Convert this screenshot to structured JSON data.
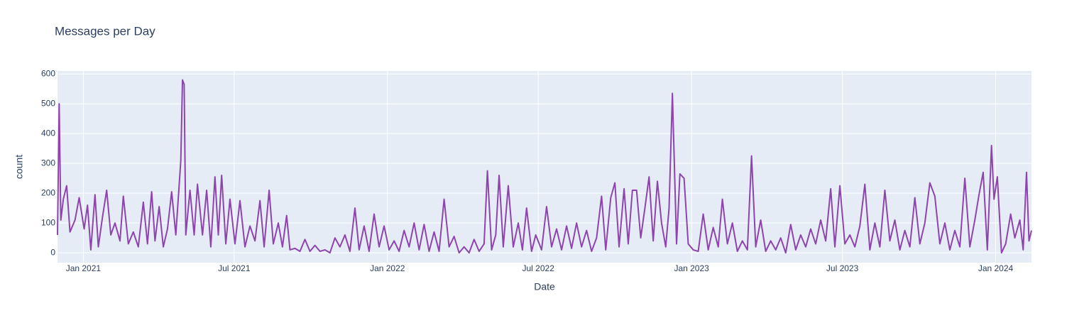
{
  "chart_data": {
    "type": "line",
    "title": "Messages per Day",
    "xlabel": "Date",
    "ylabel": "count",
    "xlim": [
      "2020-12-01",
      "2024-02-13"
    ],
    "ylim": [
      -33,
      610
    ],
    "xticks": [
      {
        "value": "2021-01-01",
        "label": "Jan 2021"
      },
      {
        "value": "2021-07-01",
        "label": "Jul 2021"
      },
      {
        "value": "2022-01-01",
        "label": "Jan 2022"
      },
      {
        "value": "2022-07-01",
        "label": "Jul 2022"
      },
      {
        "value": "2023-01-01",
        "label": "Jan 2023"
      },
      {
        "value": "2023-07-01",
        "label": "Jul 2023"
      },
      {
        "value": "2024-01-01",
        "label": "Jan 2024"
      }
    ],
    "yticks": [
      0,
      100,
      200,
      300,
      400,
      500,
      600
    ],
    "grid": true,
    "series": [
      {
        "name": "count",
        "color": "#8e44ad",
        "x": [
          "2020-12-01",
          "2020-12-03",
          "2020-12-05",
          "2020-12-08",
          "2020-12-12",
          "2020-12-16",
          "2020-12-22",
          "2020-12-27",
          "2021-01-02",
          "2021-01-06",
          "2021-01-10",
          "2021-01-15",
          "2021-01-19",
          "2021-01-24",
          "2021-01-29",
          "2021-02-03",
          "2021-02-08",
          "2021-02-14",
          "2021-02-18",
          "2021-02-24",
          "2021-03-02",
          "2021-03-08",
          "2021-03-14",
          "2021-03-19",
          "2021-03-24",
          "2021-03-28",
          "2021-04-02",
          "2021-04-07",
          "2021-04-12",
          "2021-04-17",
          "2021-04-22",
          "2021-04-28",
          "2021-04-30",
          "2021-05-02",
          "2021-05-04",
          "2021-05-09",
          "2021-05-14",
          "2021-05-18",
          "2021-05-24",
          "2021-05-29",
          "2021-06-03",
          "2021-06-08",
          "2021-06-12",
          "2021-06-16",
          "2021-06-21",
          "2021-06-26",
          "2021-07-02",
          "2021-07-08",
          "2021-07-14",
          "2021-07-20",
          "2021-07-26",
          "2021-08-01",
          "2021-08-06",
          "2021-08-12",
          "2021-08-17",
          "2021-08-23",
          "2021-08-28",
          "2021-09-02",
          "2021-09-06",
          "2021-09-12",
          "2021-09-18",
          "2021-09-24",
          "2021-09-30",
          "2021-10-06",
          "2021-10-12",
          "2021-10-18",
          "2021-10-24",
          "2021-10-30",
          "2021-11-05",
          "2021-11-11",
          "2021-11-17",
          "2021-11-23",
          "2021-11-28",
          "2021-12-04",
          "2021-12-10",
          "2021-12-16",
          "2021-12-22",
          "2021-12-28",
          "2022-01-03",
          "2022-01-09",
          "2022-01-15",
          "2022-01-21",
          "2022-01-27",
          "2022-02-02",
          "2022-02-08",
          "2022-02-14",
          "2022-02-20",
          "2022-02-26",
          "2022-03-04",
          "2022-03-10",
          "2022-03-16",
          "2022-03-22",
          "2022-03-28",
          "2022-04-03",
          "2022-04-09",
          "2022-04-15",
          "2022-04-21",
          "2022-04-27",
          "2022-05-01",
          "2022-05-06",
          "2022-05-11",
          "2022-05-15",
          "2022-05-20",
          "2022-05-26",
          "2022-06-01",
          "2022-06-07",
          "2022-06-12",
          "2022-06-17",
          "2022-06-23",
          "2022-06-28",
          "2022-07-05",
          "2022-07-11",
          "2022-07-17",
          "2022-07-23",
          "2022-07-29",
          "2022-08-04",
          "2022-08-10",
          "2022-08-16",
          "2022-08-22",
          "2022-08-28",
          "2022-09-03",
          "2022-09-09",
          "2022-09-15",
          "2022-09-20",
          "2022-09-26",
          "2022-10-01",
          "2022-10-06",
          "2022-10-12",
          "2022-10-17",
          "2022-10-22",
          "2022-10-27",
          "2022-11-01",
          "2022-11-06",
          "2022-11-11",
          "2022-11-16",
          "2022-11-21",
          "2022-11-26",
          "2022-12-01",
          "2022-12-05",
          "2022-12-09",
          "2022-12-14",
          "2022-12-18",
          "2022-12-23",
          "2022-12-28",
          "2023-01-03",
          "2023-01-09",
          "2023-01-15",
          "2023-01-21",
          "2023-01-27",
          "2023-02-02",
          "2023-02-07",
          "2023-02-13",
          "2023-02-19",
          "2023-02-25",
          "2023-03-03",
          "2023-03-09",
          "2023-03-14",
          "2023-03-19",
          "2023-03-25",
          "2023-03-31",
          "2023-04-06",
          "2023-04-12",
          "2023-04-18",
          "2023-04-24",
          "2023-04-30",
          "2023-05-06",
          "2023-05-12",
          "2023-05-18",
          "2023-05-24",
          "2023-05-30",
          "2023-06-05",
          "2023-06-11",
          "2023-06-17",
          "2023-06-22",
          "2023-06-28",
          "2023-07-04",
          "2023-07-10",
          "2023-07-16",
          "2023-07-22",
          "2023-07-28",
          "2023-08-03",
          "2023-08-09",
          "2023-08-15",
          "2023-08-21",
          "2023-08-27",
          "2023-09-02",
          "2023-09-08",
          "2023-09-14",
          "2023-09-20",
          "2023-09-26",
          "2023-10-02",
          "2023-10-08",
          "2023-10-14",
          "2023-10-20",
          "2023-10-26",
          "2023-11-01",
          "2023-11-07",
          "2023-11-13",
          "2023-11-19",
          "2023-11-25",
          "2023-12-01",
          "2023-12-07",
          "2023-12-12",
          "2023-12-17",
          "2023-12-22",
          "2023-12-27",
          "2023-12-30",
          "2024-01-03",
          "2024-01-08",
          "2024-01-13",
          "2024-01-19",
          "2024-01-24",
          "2024-01-30",
          "2024-02-03",
          "2024-02-07",
          "2024-02-10",
          "2024-02-13"
        ],
        "values": [
          60,
          500,
          110,
          180,
          225,
          70,
          110,
          185,
          80,
          160,
          10,
          195,
          20,
          120,
          210,
          60,
          100,
          40,
          190,
          30,
          70,
          20,
          170,
          30,
          205,
          40,
          155,
          20,
          80,
          205,
          60,
          310,
          580,
          565,
          60,
          210,
          60,
          230,
          60,
          210,
          20,
          255,
          60,
          260,
          30,
          180,
          30,
          175,
          20,
          90,
          40,
          175,
          20,
          210,
          30,
          100,
          20,
          125,
          10,
          15,
          5,
          45,
          5,
          25,
          5,
          10,
          0,
          50,
          20,
          60,
          5,
          150,
          10,
          90,
          5,
          130,
          20,
          90,
          10,
          40,
          5,
          75,
          20,
          100,
          10,
          95,
          5,
          70,
          5,
          180,
          20,
          55,
          0,
          20,
          0,
          45,
          5,
          30,
          275,
          10,
          60,
          260,
          20,
          225,
          20,
          100,
          10,
          150,
          5,
          60,
          10,
          155,
          20,
          80,
          10,
          90,
          15,
          100,
          20,
          75,
          5,
          50,
          190,
          10,
          185,
          235,
          20,
          215,
          30,
          210,
          210,
          50,
          150,
          255,
          40,
          240,
          100,
          20,
          150,
          535,
          30,
          265,
          250,
          30,
          10,
          5,
          130,
          10,
          85,
          20,
          180,
          30,
          100,
          5,
          40,
          10,
          325,
          20,
          110,
          5,
          40,
          10,
          50,
          0,
          95,
          10,
          60,
          20,
          80,
          30,
          110,
          40,
          215,
          20,
          225,
          30,
          60,
          20,
          90,
          230,
          10,
          100,
          20,
          210,
          40,
          110,
          10,
          75,
          20,
          185,
          30,
          100,
          235,
          190,
          30,
          100,
          10,
          75,
          20,
          250,
          20,
          110,
          195,
          270,
          10,
          360,
          180,
          255,
          0,
          30,
          130,
          50,
          110,
          10,
          270,
          40,
          75
        ]
      }
    ]
  }
}
